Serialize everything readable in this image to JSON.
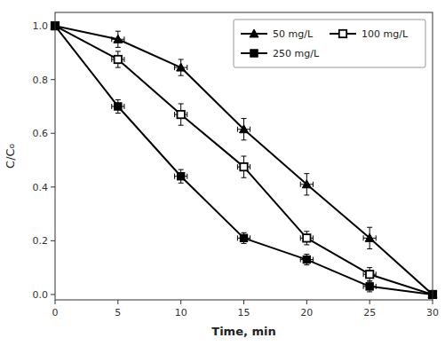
{
  "chart_data": {
    "type": "line",
    "xlabel": "Time, min",
    "ylabel": "C/C₀",
    "x": [
      0,
      5,
      10,
      15,
      20,
      25,
      30
    ],
    "series": [
      {
        "name": "50 mg/L",
        "color": "#000000",
        "marker": "triangle",
        "values": [
          1.0,
          0.95,
          0.845,
          0.615,
          0.41,
          0.21,
          0.0
        ],
        "yerr": [
          0.0,
          0.03,
          0.03,
          0.04,
          0.04,
          0.04,
          0.0
        ],
        "xerr": [
          0.0,
          0.5,
          0.5,
          0.5,
          0.5,
          0.5,
          0.0
        ]
      },
      {
        "name": "100 mg/L",
        "color": "#000000",
        "marker": "square-open",
        "values": [
          1.0,
          0.875,
          0.67,
          0.475,
          0.21,
          0.075,
          0.0
        ],
        "yerr": [
          0.0,
          0.03,
          0.04,
          0.04,
          0.025,
          0.025,
          0.0
        ],
        "xerr": [
          0.0,
          0.5,
          0.5,
          0.5,
          0.5,
          0.5,
          0.0
        ]
      },
      {
        "name": "250 mg/L",
        "color": "#000000",
        "marker": "square",
        "values": [
          1.0,
          0.7,
          0.44,
          0.21,
          0.13,
          0.03,
          0.0
        ],
        "yerr": [
          0.0,
          0.025,
          0.025,
          0.02,
          0.02,
          0.02,
          0.0
        ],
        "xerr": [
          0.0,
          0.5,
          0.5,
          0.5,
          0.5,
          0.5,
          0.0
        ]
      }
    ],
    "xlim": [
      0,
      30
    ],
    "ylim": [
      -0.02,
      1.05
    ],
    "xticks": [
      0,
      5,
      10,
      15,
      20,
      25,
      30
    ],
    "yticks": [
      {
        "value": 0.0,
        "label": "0.0"
      },
      0.2,
      0.4,
      0.6,
      0.8,
      {
        "value": 1.0,
        "label": "1.0"
      }
    ],
    "grid": false,
    "legend": "upper right"
  }
}
